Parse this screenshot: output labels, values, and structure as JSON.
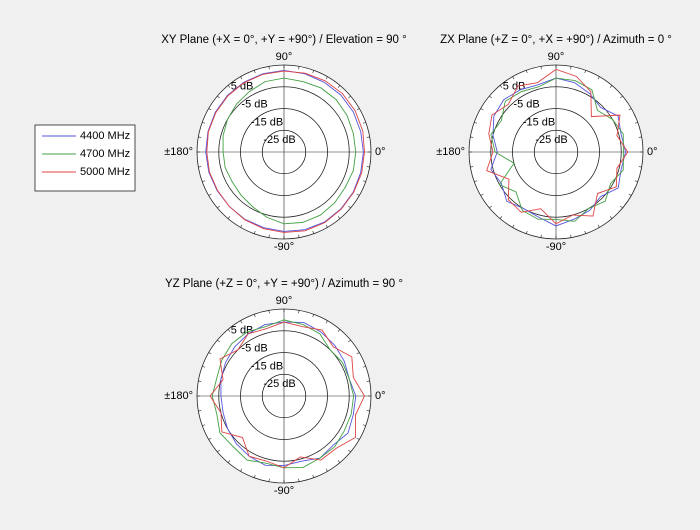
{
  "chart_data": [
    {
      "type": "polar",
      "title": "XY Plane (+X = 0°, +Y = +90°) / Elevation = 90 °",
      "rlim": [
        -35,
        5
      ],
      "rticks": [
        {
          "value": 5,
          "label": "5 dB"
        },
        {
          "value": -5,
          "label": "-5 dB"
        },
        {
          "value": -15,
          "label": "-15 dB"
        },
        {
          "value": -25,
          "label": "-25 dB"
        }
      ],
      "thetaticks": [
        {
          "value": 90,
          "label": "90°"
        },
        {
          "value": 0,
          "label": "0°"
        },
        {
          "value": -90,
          "label": "-90°"
        },
        {
          "value": 180,
          "label": "±180°"
        }
      ],
      "theta": [
        0,
        15,
        30,
        45,
        60,
        75,
        90,
        105,
        120,
        135,
        150,
        165,
        180,
        195,
        210,
        225,
        240,
        255,
        270,
        285,
        300,
        315,
        330,
        345
      ],
      "series": [
        {
          "color": "#5555dd",
          "values": [
            1.5,
            1.5,
            1.8,
            2,
            2,
            2.2,
            2.5,
            2.3,
            2,
            1.8,
            1.5,
            1.2,
            1,
            0.8,
            0.5,
            0.5,
            0.8,
            1,
            1.5,
            2,
            2.2,
            2,
            1.8,
            1.5
          ]
        },
        {
          "color": "#44a044",
          "values": [
            -2,
            -2,
            -1.5,
            -1,
            -1,
            -1.5,
            -1,
            -1.5,
            -3,
            -4,
            -5,
            -6,
            -7,
            -7,
            -7.5,
            -7,
            -6,
            -4,
            -2,
            -1.5,
            -1.5,
            -2,
            -2.5,
            -2
          ]
        },
        {
          "color": "#dd4444",
          "values": [
            2,
            2.5,
            2.8,
            3,
            2.8,
            2.5,
            2.2,
            2,
            1.8,
            1.5,
            1.2,
            1,
            0.5,
            0.5,
            0.3,
            0.5,
            1,
            1.5,
            2,
            2.5,
            2.5,
            2.2,
            2,
            2
          ]
        }
      ]
    },
    {
      "type": "polar",
      "title": "ZX Plane (+Z = 0°, +X = +90°) / Azimuth = 0 °",
      "rlim": [
        -35,
        5
      ],
      "rticks": [
        {
          "value": 5,
          "label": "5 dB"
        },
        {
          "value": -5,
          "label": "-5 dB"
        },
        {
          "value": -15,
          "label": "-15 dB"
        },
        {
          "value": -25,
          "label": "-25 dB"
        }
      ],
      "thetaticks": [
        {
          "value": 90,
          "label": "90°"
        },
        {
          "value": 0,
          "label": "0°"
        },
        {
          "value": -90,
          "label": "-90°"
        },
        {
          "value": 180,
          "label": "±180°"
        }
      ],
      "theta": [
        0,
        15,
        30,
        45,
        60,
        75,
        90,
        105,
        120,
        135,
        150,
        165,
        180,
        195,
        210,
        225,
        240,
        255,
        270,
        285,
        300,
        315,
        330,
        345
      ],
      "series": [
        {
          "color": "#5555dd",
          "values": [
            -3,
            -4,
            -2,
            -6,
            -4,
            -2,
            -1,
            -3,
            -2,
            -1,
            -2,
            -5,
            -8,
            -4,
            -6,
            -3,
            -5,
            -4,
            -1,
            -3,
            -4,
            -6,
            -2,
            -4
          ]
        },
        {
          "color": "#44a044",
          "values": [
            -4,
            -3,
            -5,
            -8,
            -2,
            -1,
            -1,
            -4,
            -3,
            -2,
            -6,
            -4,
            -7,
            -15,
            -5,
            -9,
            -4,
            -3,
            -4,
            -2,
            -5,
            -3,
            -6,
            -3
          ]
        },
        {
          "color": "#dd4444",
          "values": [
            -2,
            -6,
            -1,
            -12,
            -3,
            1,
            3,
            -2,
            0,
            -4,
            -1,
            -3,
            -6,
            -2,
            -10,
            -4,
            -3,
            -8,
            -2,
            -5,
            -1,
            -8,
            -3,
            -6
          ]
        }
      ]
    },
    {
      "type": "polar",
      "title": "YZ Plane (+Z = 0°, +Y = +90°) / Azimuth = 90 °",
      "rlim": [
        -35,
        5
      ],
      "rticks": [
        {
          "value": 5,
          "label": "5 dB"
        },
        {
          "value": -5,
          "label": "-5 dB"
        },
        {
          "value": -15,
          "label": "-15 dB"
        },
        {
          "value": -25,
          "label": "-25 dB"
        }
      ],
      "thetaticks": [
        {
          "value": 90,
          "label": "90°"
        },
        {
          "value": 0,
          "label": "0°"
        },
        {
          "value": -90,
          "label": "-90°"
        },
        {
          "value": 180,
          "label": "±180°"
        }
      ],
      "theta": [
        0,
        15,
        30,
        45,
        60,
        75,
        90,
        105,
        120,
        135,
        150,
        165,
        180,
        195,
        210,
        225,
        240,
        255,
        270,
        285,
        300,
        315,
        330,
        345
      ],
      "series": [
        {
          "color": "#5555dd",
          "values": [
            -2,
            -4,
            -3,
            -2,
            -1,
            0,
            -1,
            -1,
            -2,
            -3,
            -4,
            -5,
            -6,
            -6,
            -5,
            -4,
            -3,
            -2,
            -3,
            -4,
            -2,
            -3,
            -1,
            -2
          ]
        },
        {
          "color": "#44a044",
          "values": [
            -3,
            -4,
            -4,
            -5,
            -2,
            -1,
            0,
            -2,
            -1,
            -1,
            -2,
            -3,
            -2,
            -3,
            -1,
            -2,
            -1,
            -3,
            -2,
            -1,
            -2,
            -2,
            -3,
            -3
          ]
        },
        {
          "color": "#dd4444",
          "values": [
            2,
            -2,
            1,
            -3,
            0,
            -2,
            -1,
            -3,
            -2,
            -5,
            -1,
            -6,
            -1,
            -5,
            -2,
            -8,
            -3,
            -4,
            -2,
            -6,
            -1,
            -1,
            3,
            -1
          ]
        }
      ]
    }
  ],
  "legend": {
    "position": "left",
    "entries": [
      {
        "name": "4400 MHz",
        "color": "#5555dd"
      },
      {
        "name": "4700 MHz",
        "color": "#44a044"
      },
      {
        "name": "5000 MHz",
        "color": "#dd4444"
      }
    ]
  }
}
